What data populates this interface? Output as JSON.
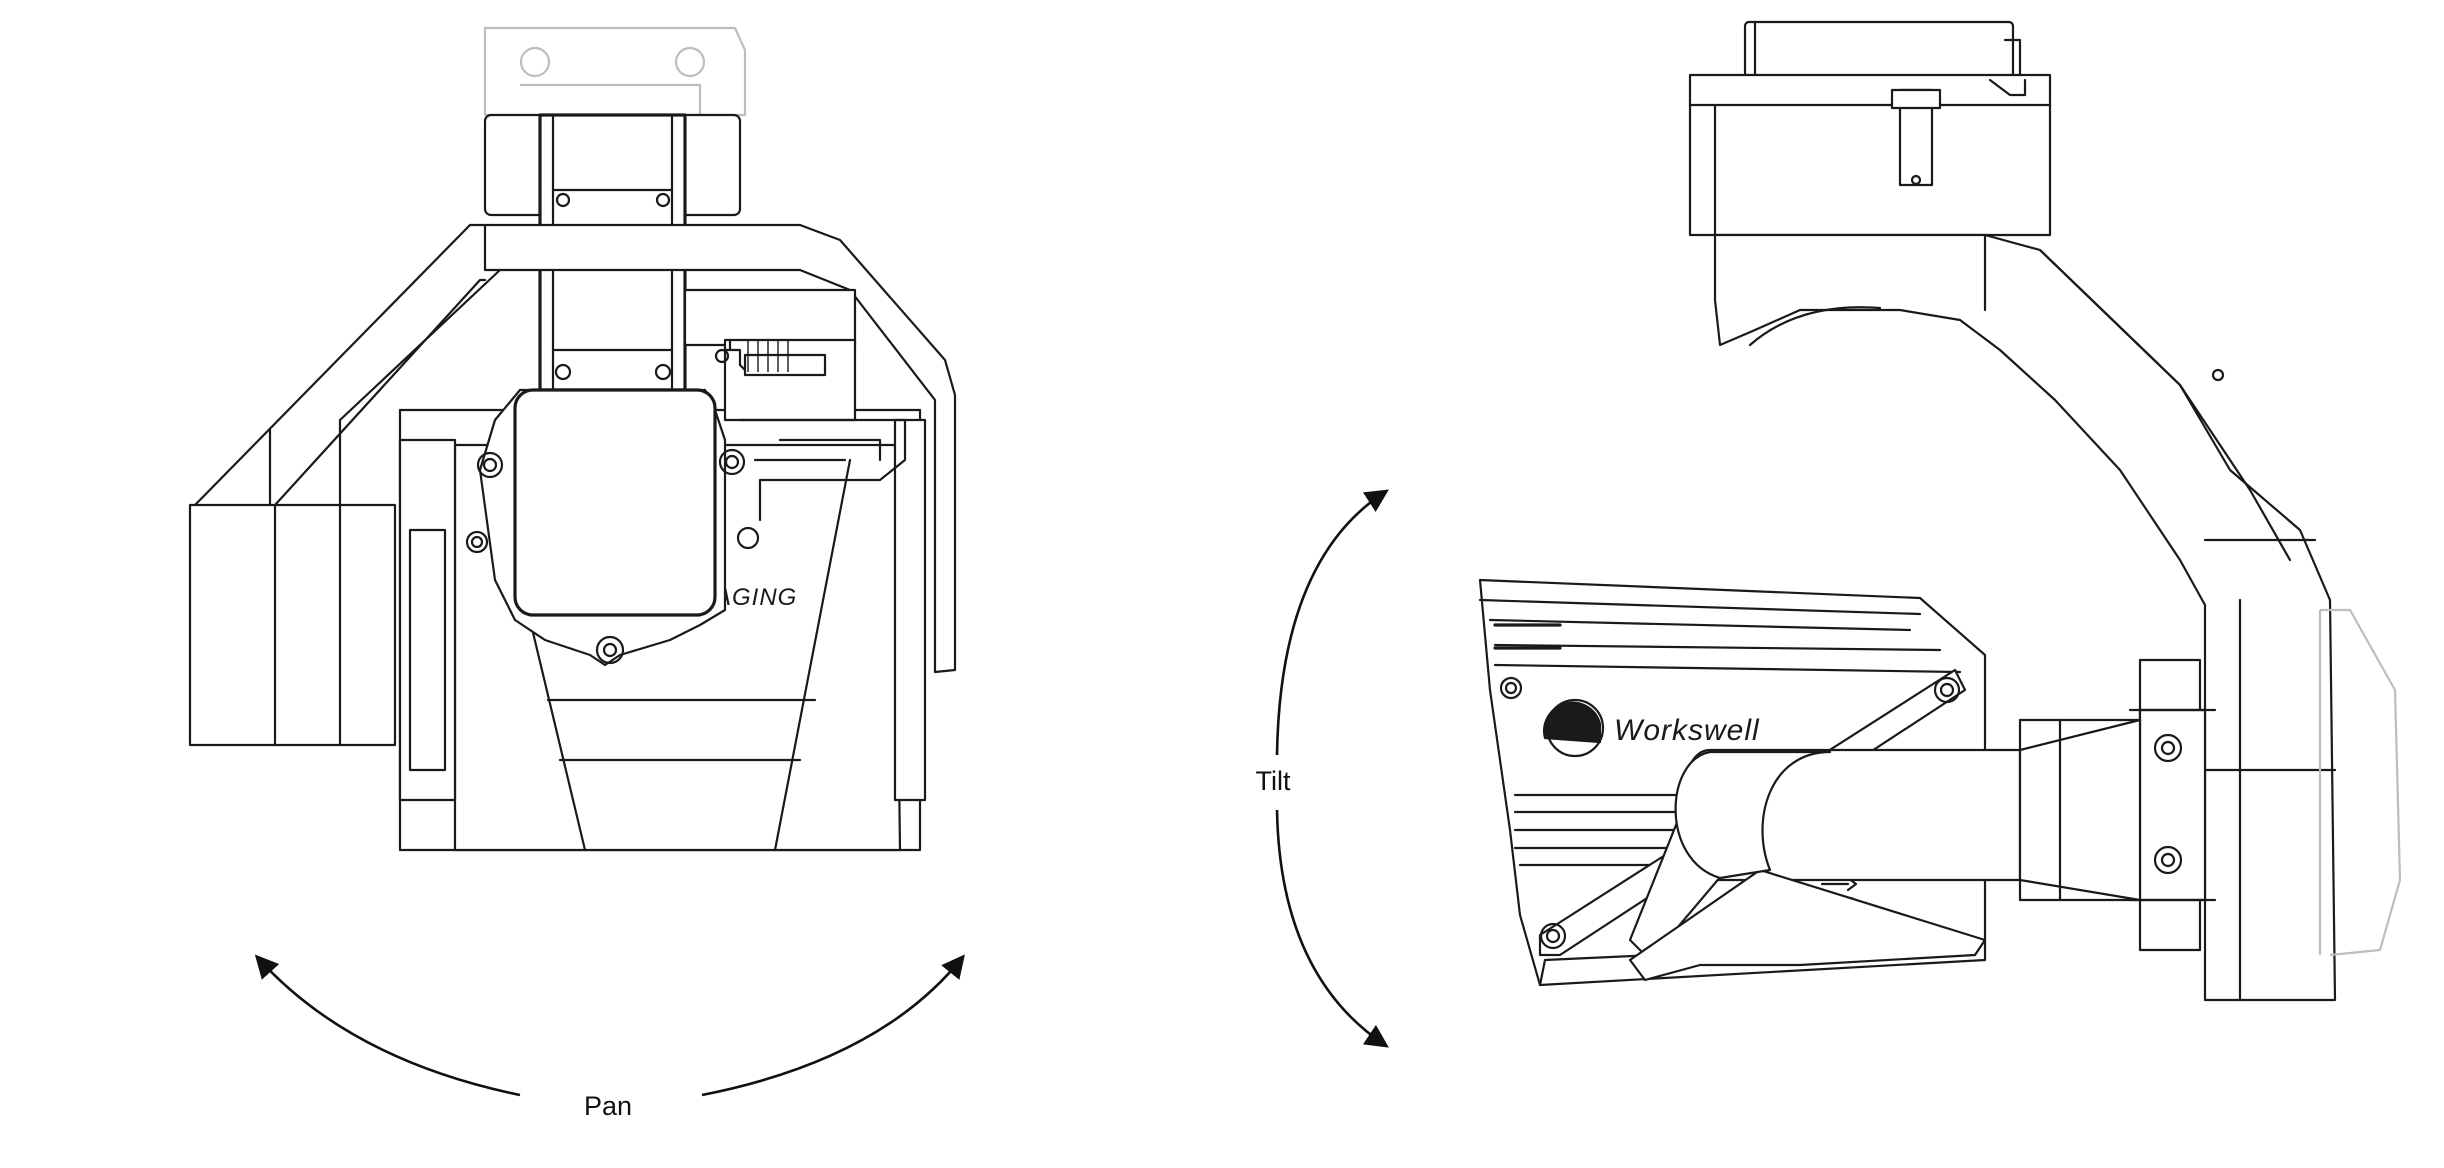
{
  "labels": {
    "pan": "Pan",
    "tilt": "Tilt"
  },
  "camera_markings": {
    "brand": "Workswell",
    "imaging_fragment": "AGING"
  },
  "views": [
    "front-view",
    "side-view"
  ],
  "colors": {
    "line": "#1a1a1a",
    "ghost_part": "#bdbdbd",
    "background": "#ffffff"
  }
}
